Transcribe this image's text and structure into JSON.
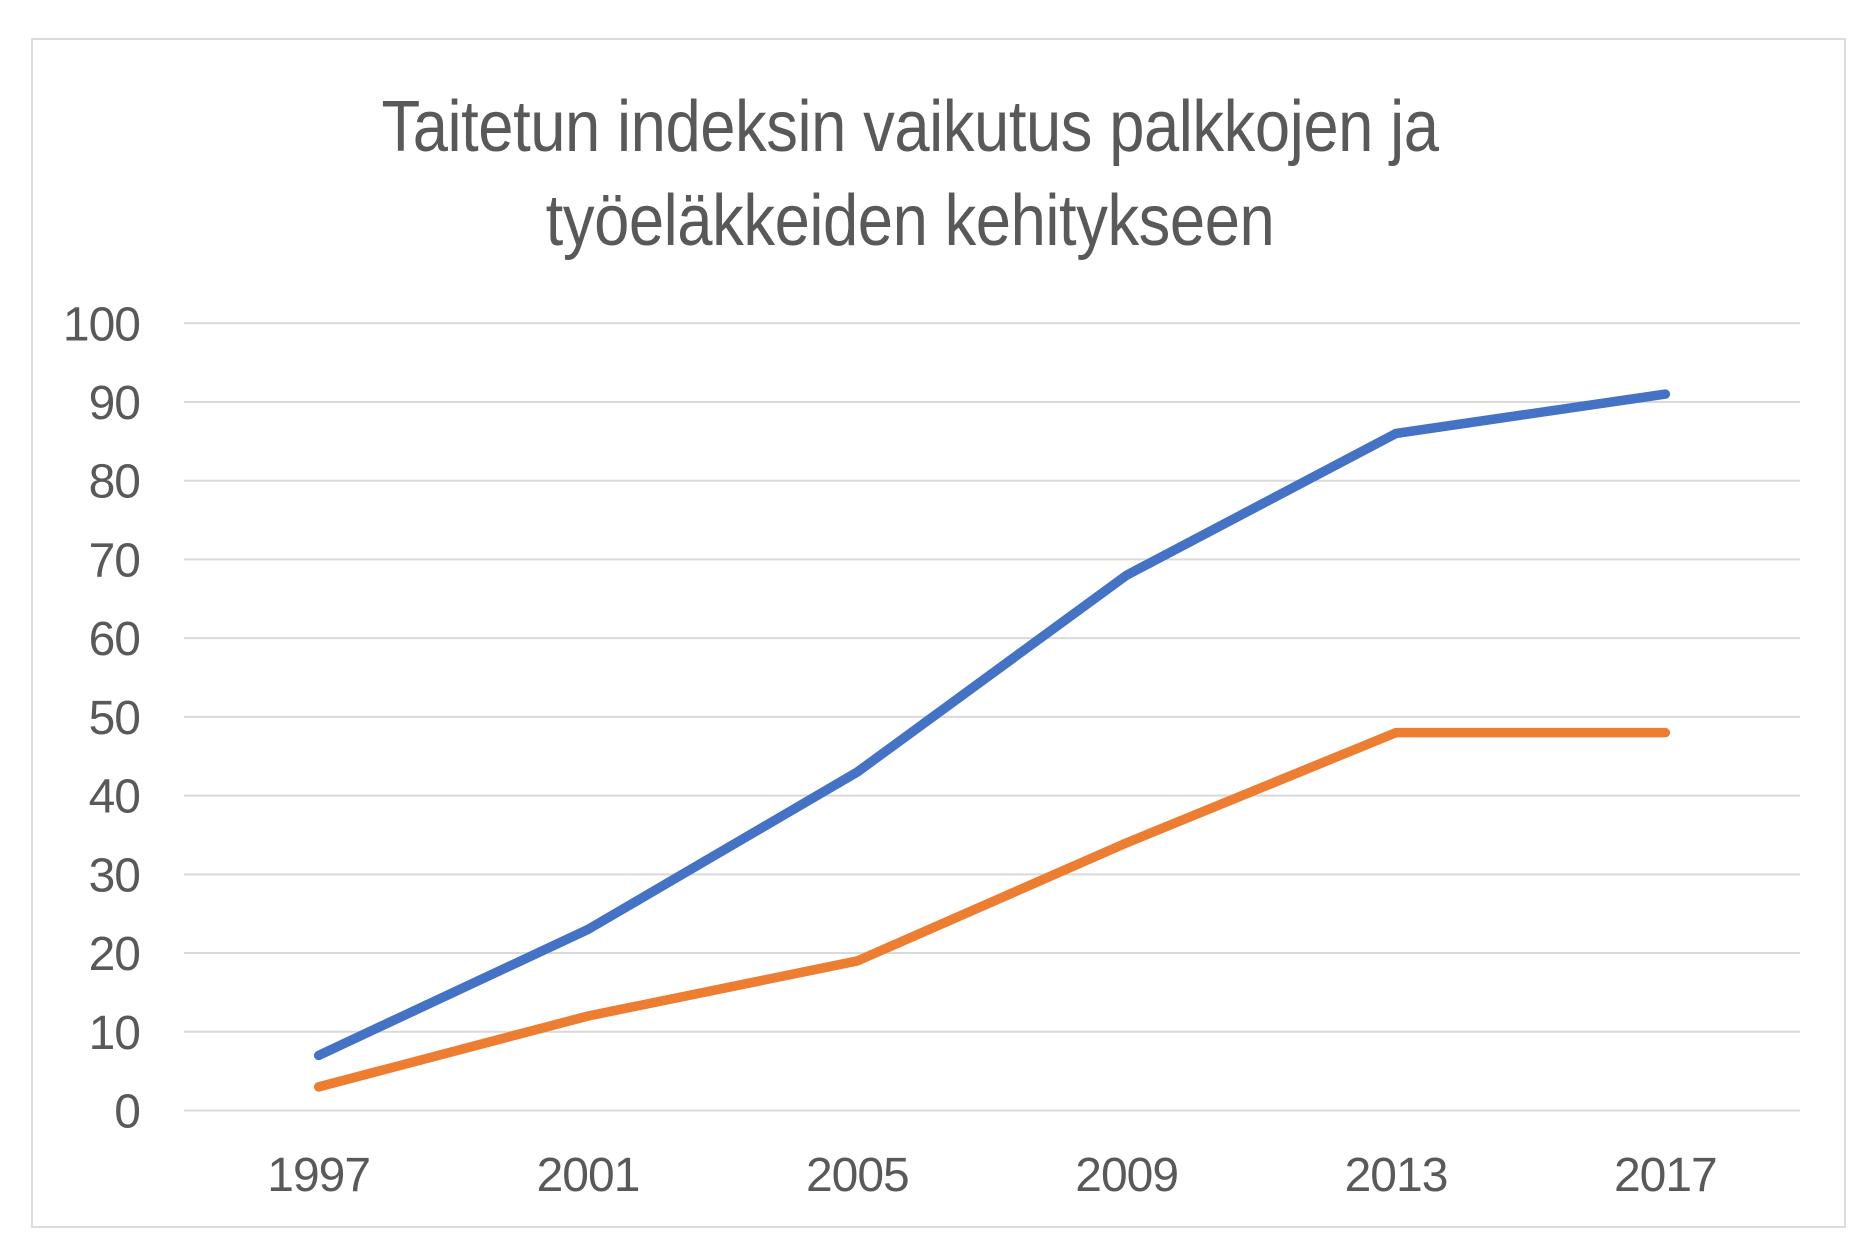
{
  "chart_data": {
    "type": "line",
    "title": "Taitetun indeksin vaikutus palkkojen ja työeläkkeiden kehitykseen",
    "title_lines": [
      "Taitetun indeksin vaikutus palkkojen ja",
      "työeläkkeiden kehitykseen"
    ],
    "categories": [
      "1997",
      "2001",
      "2005",
      "2009",
      "2013",
      "2017"
    ],
    "series": [
      {
        "id": "blue-line",
        "color": "#4472C4",
        "values": [
          7,
          23,
          43,
          68,
          86,
          91
        ]
      },
      {
        "id": "orange-line",
        "color": "#ED7D31",
        "values": [
          3,
          12,
          19,
          34,
          48,
          48
        ]
      }
    ],
    "y_ticks": [
      0,
      10,
      20,
      30,
      40,
      50,
      60,
      70,
      80,
      90,
      100
    ],
    "ylim": [
      0,
      100
    ],
    "xlabel": "",
    "ylabel": "",
    "grid": "horizontal",
    "legend": "none",
    "markers": "none",
    "colors": {
      "title_text": "#595959",
      "axis_text": "#595959",
      "gridline": "#d9d9d9",
      "frame_border": "#dcdcdc",
      "background": "#ffffff"
    }
  }
}
